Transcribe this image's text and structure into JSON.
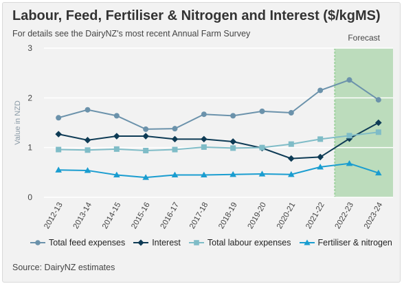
{
  "header": {
    "title": "Labour, Feed, Fertiliser & Nitrogen and Interest ($/kgMS)",
    "subtitle": "For details see the DairyNZ's most recent Annual Farm Survey"
  },
  "footer": {
    "source": "Source: DairyNZ estimates"
  },
  "chart_data": {
    "type": "line",
    "title": "Labour, Feed, Fertiliser & Nitrogen and Interest ($/kgMS)",
    "xlabel": "",
    "ylabel": "Value in NZD",
    "ylim": [
      0,
      3
    ],
    "yticks": [
      0,
      1,
      2,
      3
    ],
    "grid": true,
    "legend_position": "bottom",
    "categories": [
      "2012-13",
      "2013-14",
      "2014-15",
      "2015-16",
      "2016-17",
      "2017-18",
      "2018-19",
      "2019-20",
      "2020-21",
      "2021-22",
      "2022-23",
      "2023-24"
    ],
    "forecast": {
      "label": "Forecast",
      "from": "2022-23",
      "to": "2023-24",
      "color": "#bcdcbc",
      "border_color": "#9fd39f"
    },
    "series": [
      {
        "name": "Total feed expenses",
        "marker": "circle",
        "color": "#6b92ab",
        "values": [
          1.6,
          1.76,
          1.64,
          1.37,
          1.38,
          1.67,
          1.64,
          1.73,
          1.7,
          2.15,
          2.36,
          1.96
        ]
      },
      {
        "name": "Interest",
        "marker": "diamond",
        "color": "#0e3b55",
        "values": [
          1.27,
          1.15,
          1.23,
          1.23,
          1.17,
          1.17,
          1.12,
          0.99,
          0.78,
          0.81,
          1.18,
          1.5
        ]
      },
      {
        "name": "Total labour expenses",
        "marker": "square",
        "color": "#7fbcc7",
        "values": [
          0.96,
          0.95,
          0.97,
          0.94,
          0.96,
          1.01,
          0.99,
          1.0,
          1.07,
          1.17,
          1.24,
          1.31
        ]
      },
      {
        "name": "Fertiliser & nitrogen",
        "marker": "triangle",
        "color": "#1a9dd0",
        "values": [
          0.55,
          0.54,
          0.45,
          0.4,
          0.45,
          0.45,
          0.46,
          0.47,
          0.46,
          0.61,
          0.68,
          0.49
        ]
      }
    ]
  }
}
